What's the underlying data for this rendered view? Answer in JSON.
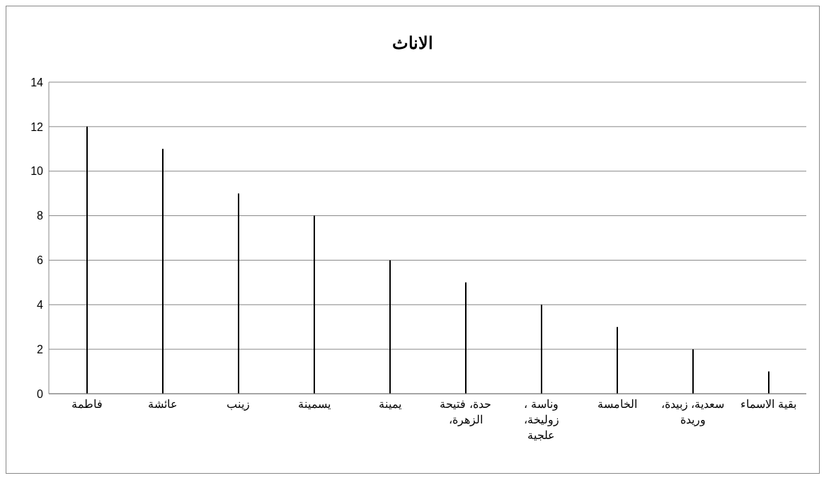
{
  "chart_data": {
    "type": "bar",
    "title": "الاناث",
    "categories": [
      "فاطمة",
      "عائشة",
      "زينب",
      "يسمينة",
      "يمينة",
      "حدة، فتيحة الزهرة،",
      "وناسة ، زوليخة، علجية",
      "الخامسة",
      "سعدية، زبيدة، وريدة",
      "بقية الاسماء"
    ],
    "values": [
      12,
      11,
      9,
      8,
      6,
      5,
      4,
      3,
      2,
      1
    ],
    "color": "#000000",
    "ylim": [
      0,
      14
    ],
    "yticks": [
      0,
      2,
      4,
      6,
      8,
      10,
      12,
      14
    ],
    "grid": "y",
    "legend": false
  }
}
